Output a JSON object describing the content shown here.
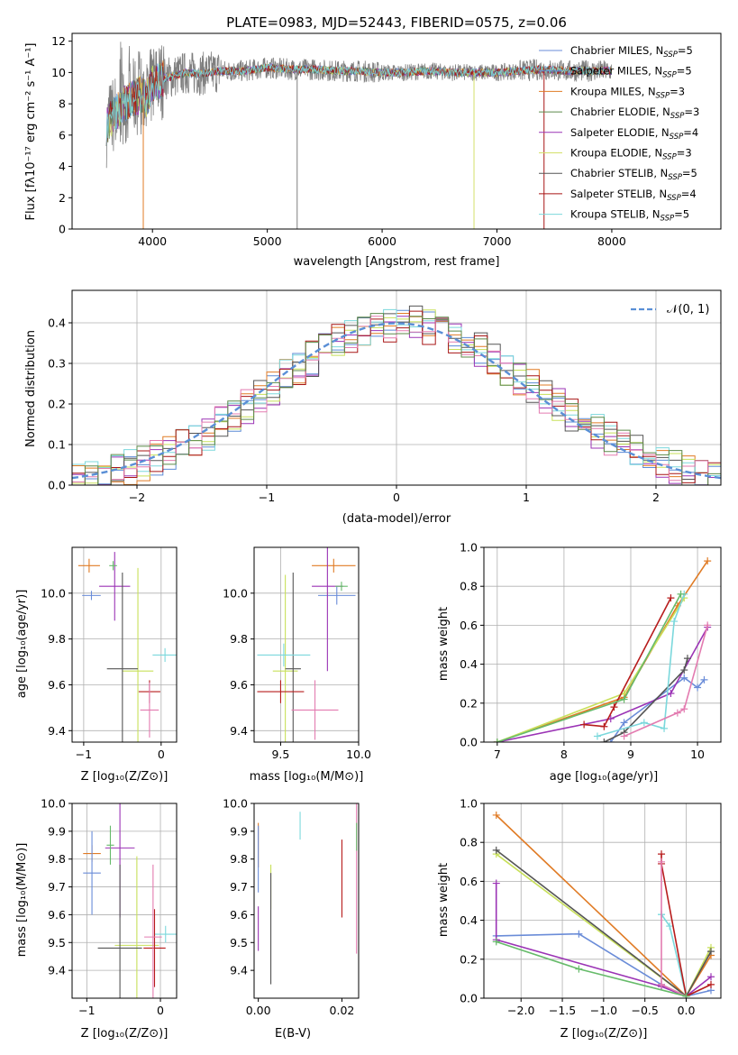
{
  "title": "PLATE=0983, MJD=52443, FIBERID=0575, z=0.06",
  "colors": {
    "data": "#7f7f7f",
    "models": [
      "#6a8cd8",
      "#5b8bd6",
      "#e07b25",
      "#5c8a4a",
      "#9b33b5",
      "#d4e06a",
      "#555555",
      "#a81515",
      "#7bd8dc"
    ],
    "normal": "#5a8fd6",
    "ssp": [
      "#e07b25",
      "#6a8cd8",
      "#9b33b5",
      "#c8e05a",
      "#555555",
      "#7bd8dc",
      "#b71c1c",
      "#e37bb0",
      "#66bb6a"
    ]
  },
  "chart_data": [
    {
      "id": "spectrum",
      "type": "line",
      "xlabel": "wavelength [Angstrom, rest frame]",
      "ylabel": "Flux [fλ10⁻¹⁷ erg cm⁻² s⁻¹ A⁻¹]",
      "xlim": [
        3300,
        8950
      ],
      "ylim": [
        0,
        12.5
      ],
      "xticks": [
        "4000",
        "5000",
        "6000",
        "7000",
        "8000"
      ],
      "yticks": [
        "0",
        "2",
        "4",
        "6",
        "8",
        "10",
        "12"
      ],
      "legend_position": "right",
      "legend": [
        "Chabrier MILES, N_SSP=5",
        "Salpeter MILES, N_SSP=5",
        "Kroupa MILES, N_SSP=3",
        "Chabrier ELODIE, N_SSP=3",
        "Salpeter ELODIE, N_SSP=4",
        "Kroupa ELODIE, N_SSP=3",
        "Chabrier STELIB, N_SSP=5",
        "Salpeter STELIB, N_SSP=4",
        "Kroupa STELIB, N_SSP=5"
      ],
      "continuum": {
        "x": [
          3600,
          3650,
          3700,
          3750,
          3800,
          3850,
          3900,
          3950,
          4000,
          4100,
          4200,
          4300,
          4400,
          4500,
          4600,
          4800,
          5000,
          5200,
          5400,
          5600,
          5800,
          6000,
          6200,
          6400,
          6600,
          6800,
          7000,
          7200,
          7400,
          7600,
          7800,
          8000
        ],
        "y": [
          6.5,
          7.2,
          7.6,
          8.0,
          8.2,
          8.4,
          8.6,
          8.3,
          9.3,
          9.6,
          9.8,
          10.0,
          9.9,
          10.0,
          10.1,
          10.1,
          10.3,
          10.2,
          10.2,
          10.1,
          10.1,
          10.0,
          10.0,
          10.1,
          10.0,
          10.0,
          10.0,
          10.1,
          10.2,
          10.1,
          10.1,
          10.1
        ]
      },
      "spikes": [
        {
          "x": 3920,
          "y": 0
        },
        {
          "x": 5260,
          "y": 0
        },
        {
          "x": 6800,
          "y": 0
        },
        {
          "x": 7410,
          "y": 0
        }
      ]
    },
    {
      "id": "residuals",
      "type": "histogram",
      "xlabel": "(data-model)/error",
      "ylabel": "Normed distribution",
      "xlim": [
        -2.5,
        2.5
      ],
      "ylim": [
        0,
        0.48
      ],
      "xticks": [
        "−2",
        "−1",
        "0",
        "1",
        "2"
      ],
      "yticks": [
        "0.0",
        "0.1",
        "0.2",
        "0.3",
        "0.4"
      ],
      "legend": [
        "𝒩(0, 1)"
      ],
      "legend_position": "top-right",
      "grid": true,
      "bin_width": 0.1
    },
    {
      "id": "age-vs-Z",
      "type": "scatter",
      "xlabel": "Z [log₁₀(Z/Z⊙)]",
      "ylabel": "age  [log₁₀(age/yr)]",
      "xlim": [
        -1.15,
        0.2
      ],
      "ylim": [
        9.35,
        10.2
      ],
      "xticks": [
        "−1",
        "0"
      ],
      "xtick_vals": [
        -1,
        0
      ],
      "yticks": [
        "9.4",
        "9.6",
        "9.8",
        "10.0"
      ],
      "ytick_vals": [
        9.4,
        9.6,
        9.8,
        10.0
      ],
      "grid": true,
      "points": [
        {
          "x": -0.93,
          "y": 10.12,
          "xerr": 0.14,
          "yerr": 0.03
        },
        {
          "x": -0.9,
          "y": 9.99,
          "xerr": 0.12,
          "yerr": 0.02
        },
        {
          "x": -0.6,
          "y": 10.03,
          "xerr": 0.2,
          "yerr": 0.15
        },
        {
          "x": -0.3,
          "y": 9.66,
          "xerr": 0.2,
          "yerr": 0.45
        },
        {
          "x": -0.5,
          "y": 9.67,
          "xerr": 0.2,
          "yerr": 0.42
        },
        {
          "x": 0.05,
          "y": 9.73,
          "xerr": 0.16,
          "yerr": 0.03
        },
        {
          "x": -0.15,
          "y": 9.57,
          "xerr": 0.14,
          "yerr": 0.05
        },
        {
          "x": -0.15,
          "y": 9.49,
          "xerr": 0.12,
          "yerr": 0.12
        },
        {
          "x": -0.62,
          "y": 10.12,
          "xerr": 0.05,
          "yerr": 0.02
        }
      ]
    },
    {
      "id": "age-vs-mass",
      "type": "scatter",
      "xlabel": "mass [log₁₀(M/M⊙)]",
      "ylabel": "",
      "xlim": [
        9.33,
        10.0
      ],
      "ylim": [
        9.35,
        10.2
      ],
      "xticks": [
        "9.5",
        "10.0"
      ],
      "xtick_vals": [
        9.5,
        10.0
      ],
      "yticks": [
        "9.4",
        "9.6",
        "9.8",
        "10.0"
      ],
      "ytick_vals": [
        9.4,
        9.6,
        9.8,
        10.0
      ],
      "grid": true,
      "points": [
        {
          "x": 9.84,
          "y": 10.12,
          "xerr": 0.14,
          "yerr": 0.03
        },
        {
          "x": 9.86,
          "y": 9.99,
          "xerr": 0.12,
          "yerr": 0.04
        },
        {
          "x": 9.8,
          "y": 10.03,
          "xerr": 0.1,
          "yerr": 0.37
        },
        {
          "x": 9.53,
          "y": 9.66,
          "xerr": 0.08,
          "yerr": 0.42
        },
        {
          "x": 9.58,
          "y": 9.67,
          "xerr": 0.05,
          "yerr": 0.42
        },
        {
          "x": 9.52,
          "y": 9.73,
          "xerr": 0.17,
          "yerr": 0.05
        },
        {
          "x": 9.5,
          "y": 9.57,
          "xerr": 0.15,
          "yerr": 0.05
        },
        {
          "x": 9.72,
          "y": 9.49,
          "xerr": 0.15,
          "yerr": 0.13
        },
        {
          "x": 9.89,
          "y": 10.03,
          "xerr": 0.04,
          "yerr": 0.02
        }
      ]
    },
    {
      "id": "massweight-vs-age",
      "type": "line",
      "xlabel": "age  [log₁₀(age/yr)]",
      "ylabel": "mass weight",
      "xlim": [
        6.8,
        10.35
      ],
      "ylim": [
        0,
        1.0
      ],
      "xticks": [
        "7",
        "8",
        "9",
        "10"
      ],
      "xtick_vals": [
        7,
        8,
        9,
        10
      ],
      "yticks": [
        "0.0",
        "0.2",
        "0.4",
        "0.6",
        "0.8",
        "1.0"
      ],
      "ytick_vals": [
        0,
        0.2,
        0.4,
        0.6,
        0.8,
        1.0
      ],
      "grid": true,
      "series": [
        {
          "x": [
            7.0,
            8.9,
            9.7,
            10.15
          ],
          "y": [
            0.0,
            0.23,
            0.7,
            0.93
          ]
        },
        {
          "x": [
            8.7,
            8.9,
            9.8,
            10.0,
            10.1
          ],
          "y": [
            0.0,
            0.1,
            0.33,
            0.28,
            0.32
          ]
        },
        {
          "x": [
            7.0,
            8.7,
            9.6,
            10.15
          ],
          "y": [
            0.0,
            0.12,
            0.25,
            0.59
          ]
        },
        {
          "x": [
            7.0,
            8.9,
            9.8
          ],
          "y": [
            0.0,
            0.25,
            0.74
          ]
        },
        {
          "x": [
            8.6,
            8.9,
            9.8,
            9.85
          ],
          "y": [
            0.0,
            0.05,
            0.37,
            0.43
          ]
        },
        {
          "x": [
            8.5,
            9.2,
            9.5,
            9.65,
            9.8
          ],
          "y": [
            0.03,
            0.1,
            0.07,
            0.62,
            0.76
          ]
        },
        {
          "x": [
            8.3,
            8.6,
            8.75,
            9.6
          ],
          "y": [
            0.09,
            0.08,
            0.18,
            0.74
          ]
        },
        {
          "x": [
            8.9,
            9.7,
            9.8,
            10.15
          ],
          "y": [
            0.03,
            0.15,
            0.17,
            0.6
          ]
        },
        {
          "x": [
            7.0,
            8.9,
            9.75
          ],
          "y": [
            0.0,
            0.22,
            0.76
          ]
        }
      ]
    },
    {
      "id": "mass-vs-Z",
      "type": "scatter",
      "xlabel": "Z [log₁₀(Z/Z⊙)]",
      "ylabel": "mass [log₁₀(M/M⊙)]",
      "xlim": [
        -1.2,
        0.22
      ],
      "ylim": [
        9.3,
        10.0
      ],
      "xticks": [
        "−1",
        "0"
      ],
      "xtick_vals": [
        -1,
        0
      ],
      "yticks": [
        "9.4",
        "9.5",
        "9.6",
        "9.7",
        "9.8",
        "9.9",
        "10.0"
      ],
      "ytick_vals": [
        9.4,
        9.5,
        9.6,
        9.7,
        9.8,
        9.9,
        10.0
      ],
      "grid": true,
      "points": [
        {
          "x": -0.93,
          "y": 9.82,
          "xerr": 0.12,
          "yerr": 0.03
        },
        {
          "x": -0.93,
          "y": 9.75,
          "xerr": 0.12,
          "yerr": 0.15
        },
        {
          "x": -0.55,
          "y": 9.84,
          "xerr": 0.2,
          "yerr": 0.25
        },
        {
          "x": -0.32,
          "y": 9.49,
          "xerr": 0.3,
          "yerr": 0.32
        },
        {
          "x": -0.55,
          "y": 9.48,
          "xerr": 0.3,
          "yerr": 0.3
        },
        {
          "x": 0.07,
          "y": 9.53,
          "xerr": 0.15,
          "yerr": 0.03
        },
        {
          "x": -0.08,
          "y": 9.48,
          "xerr": 0.15,
          "yerr": 0.14
        },
        {
          "x": -0.1,
          "y": 9.52,
          "xerr": 0.12,
          "yerr": 0.26
        },
        {
          "x": -0.68,
          "y": 9.85,
          "xerr": 0.05,
          "yerr": 0.07
        }
      ]
    },
    {
      "id": "mass-vs-EBV",
      "type": "scatter",
      "xlabel": "E(B-V)",
      "ylabel": "",
      "xlim": [
        -0.001,
        0.024
      ],
      "ylim": [
        9.3,
        10.0
      ],
      "xticks": [
        "0.00",
        "0.02"
      ],
      "xtick_vals": [
        0.0,
        0.02
      ],
      "yticks": [
        "9.4",
        "9.5",
        "9.6",
        "9.7",
        "9.8",
        "9.9",
        "10.0"
      ],
      "ytick_vals": [
        9.4,
        9.5,
        9.6,
        9.7,
        9.8,
        9.9,
        10.0
      ],
      "grid": false,
      "points": [
        {
          "x": 0.0,
          "y": 9.85,
          "xerr": 0,
          "yerr": 0.08
        },
        {
          "x": 0.0,
          "y": 9.8,
          "xerr": 0,
          "yerr": 0.12
        },
        {
          "x": 0.0,
          "y": 9.55,
          "xerr": 0,
          "yerr": 0.08
        },
        {
          "x": 0.003,
          "y": 9.7,
          "xerr": 0,
          "yerr": 0.08
        },
        {
          "x": 0.003,
          "y": 9.55,
          "xerr": 0,
          "yerr": 0.2
        },
        {
          "x": 0.01,
          "y": 9.92,
          "xerr": 0,
          "yerr": 0.05
        },
        {
          "x": 0.02,
          "y": 9.73,
          "xerr": 0,
          "yerr": 0.14
        },
        {
          "x": 0.0235,
          "y": 9.73,
          "xerr": 0,
          "yerr": 0.27
        },
        {
          "x": 0.0235,
          "y": 9.88,
          "xerr": 0,
          "yerr": 0.05
        }
      ]
    },
    {
      "id": "massweight-vs-Z",
      "type": "line",
      "xlabel": "Z [log₁₀(Z/Z⊙)]",
      "ylabel": "mass weight",
      "xlim": [
        -2.45,
        0.42
      ],
      "ylim": [
        0,
        1.0
      ],
      "xticks": [
        "−2.0",
        "−1.5",
        "−1.0",
        "−0.5",
        "0.0"
      ],
      "xtick_vals": [
        -2.0,
        -1.5,
        -1.0,
        -0.5,
        0.0
      ],
      "yticks": [
        "0.0",
        "0.2",
        "0.4",
        "0.6",
        "0.8",
        "1.0"
      ],
      "ytick_vals": [
        0,
        0.2,
        0.4,
        0.6,
        0.8,
        1.0
      ],
      "grid": true,
      "series": [
        {
          "x": [
            -2.3,
            0.0,
            0.3
          ],
          "y": [
            0.94,
            0.01,
            0.22
          ]
        },
        {
          "x": [
            -2.3,
            -1.3,
            -0.3,
            0.0,
            0.3
          ],
          "y": [
            0.32,
            0.33,
            0.07,
            0.01,
            0.04
          ]
        },
        {
          "x": [
            -2.3,
            -2.3,
            -0.3,
            0.0,
            0.3
          ],
          "y": [
            0.59,
            0.3,
            0.06,
            0.01,
            0.11
          ]
        },
        {
          "x": [
            -2.3,
            0.0,
            0.3
          ],
          "y": [
            0.74,
            0.01,
            0.26
          ]
        },
        {
          "x": [
            -2.3,
            0.0,
            0.3
          ],
          "y": [
            0.76,
            0.01,
            0.24
          ]
        },
        {
          "x": [
            -0.3,
            -0.3,
            -0.2,
            0.0
          ],
          "y": [
            0.43,
            0.43,
            0.37,
            0.01
          ]
        },
        {
          "x": [
            -0.3,
            -0.3,
            0.0,
            0.3
          ],
          "y": [
            0.74,
            0.69,
            0.01,
            0.07
          ]
        },
        {
          "x": [
            -0.3,
            -0.3,
            0.0
          ],
          "y": [
            0.7,
            0.07,
            0.01
          ]
        },
        {
          "x": [
            -2.3,
            -1.3,
            0.0
          ],
          "y": [
            0.29,
            0.15,
            0.01
          ]
        }
      ]
    }
  ]
}
